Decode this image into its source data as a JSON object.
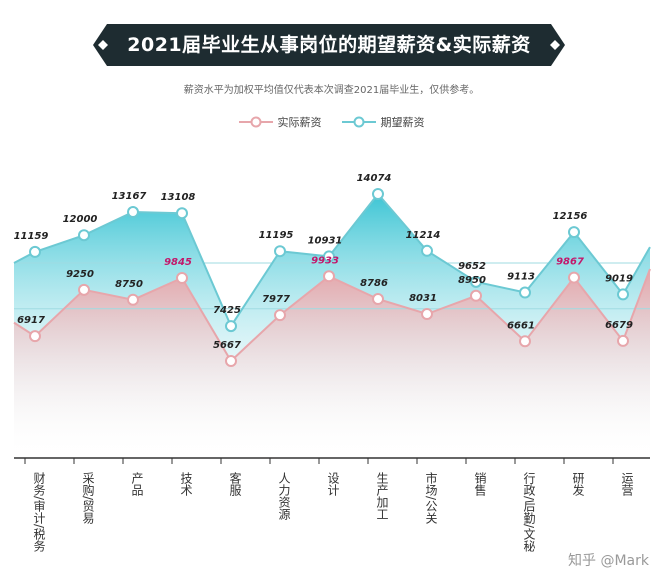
{
  "banner": {
    "title": "2021届毕业生从事岗位的期望薪资&实际薪资"
  },
  "subtitle": "薪资水平为加权平均值仅代表本次调查2021届毕业生，仅供参考。",
  "colors": {
    "actual": "#e7a6ab",
    "expected": "#6cc9d3",
    "banner": "#1e2c31",
    "highlight": "#c2186b"
  },
  "watermark": "知乎 @Mark",
  "chart_data": {
    "type": "line",
    "title": "2021届毕业生从事岗位的期望薪资&实际薪资",
    "categories": [
      "财务/审计/税务",
      "采购/贸易",
      "产品",
      "技术",
      "客服",
      "人力资源",
      "设计",
      "生产加工",
      "市场/公关",
      "销售",
      "行政/后勤/文秘",
      "研发",
      "运营"
    ],
    "highlighted_actual": [
      3,
      6,
      11
    ],
    "legend_position": "top",
    "grid": false,
    "series": [
      {
        "name": "实际薪资",
        "values": [
          6917,
          9250,
          8750,
          9845,
          5667,
          7977,
          9933,
          8786,
          8031,
          8950,
          6661,
          9867,
          6679
        ]
      },
      {
        "name": "期望薪资",
        "values": [
          11159,
          12000,
          13167,
          13108,
          7425,
          11195,
          10931,
          14074,
          11214,
          9652,
          9113,
          12156,
          9019
        ]
      }
    ]
  }
}
